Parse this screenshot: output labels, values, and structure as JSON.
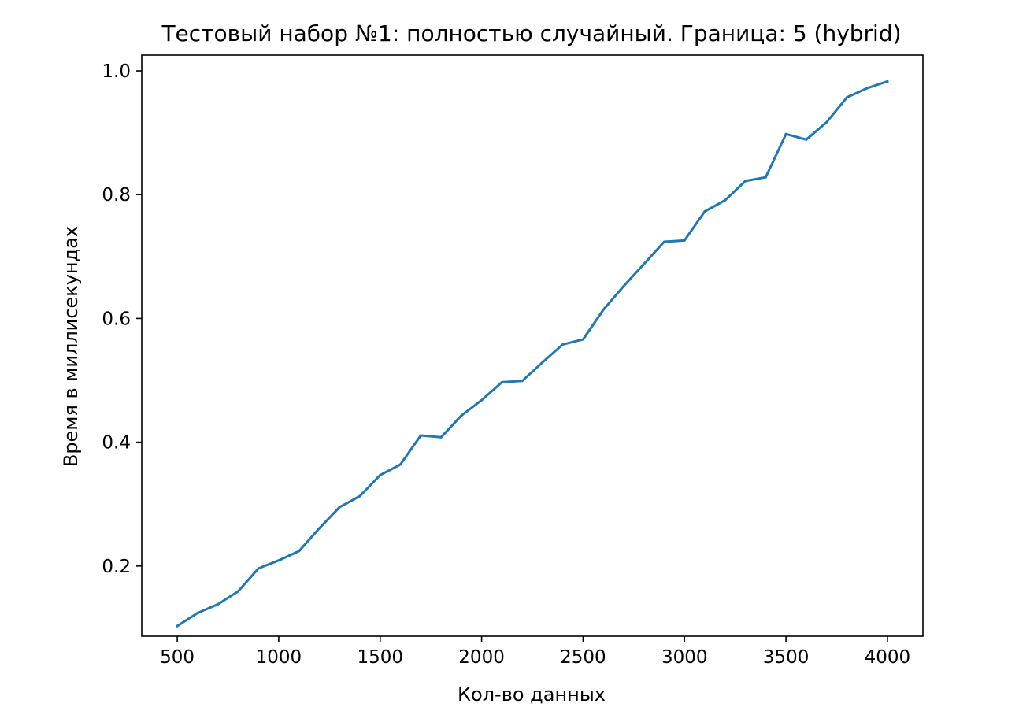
{
  "chart_data": {
    "type": "line",
    "title": "Тестовый набор №1: полностью случайный. Граница: 5 (hybrid)",
    "xlabel": "Кол-во данных",
    "ylabel": "Время в миллисекундах",
    "xlim": [
      325,
      4175
    ],
    "ylim": [
      0.0865,
      1.0255
    ],
    "xticks": [
      500,
      1000,
      1500,
      2000,
      2500,
      3000,
      3500,
      4000
    ],
    "yticks": [
      0.2,
      0.4,
      0.6,
      0.8,
      1.0
    ],
    "xtick_labels": [
      "500",
      "1000",
      "1500",
      "2000",
      "2500",
      "3000",
      "3500",
      "4000"
    ],
    "ytick_labels": [
      "0.2",
      "0.4",
      "0.6",
      "0.8",
      "1.0"
    ],
    "grid": false,
    "series": [
      {
        "color": "#1f77b4",
        "x": [
          500,
          600,
          700,
          800,
          900,
          1000,
          1100,
          1200,
          1300,
          1400,
          1500,
          1600,
          1700,
          1800,
          1900,
          2000,
          2100,
          2200,
          2300,
          2400,
          2500,
          2600,
          2700,
          2800,
          2900,
          3000,
          3100,
          3200,
          3300,
          3400,
          3500,
          3600,
          3700,
          3800,
          3900,
          4000
        ],
        "y": [
          0.103,
          0.124,
          0.138,
          0.159,
          0.196,
          0.209,
          0.224,
          0.261,
          0.295,
          0.313,
          0.347,
          0.364,
          0.411,
          0.408,
          0.443,
          0.468,
          0.497,
          0.499,
          0.529,
          0.558,
          0.566,
          0.614,
          0.652,
          0.688,
          0.724,
          0.726,
          0.773,
          0.791,
          0.822,
          0.828,
          0.898,
          0.889,
          0.917,
          0.957,
          0.972,
          0.983
        ]
      }
    ]
  }
}
